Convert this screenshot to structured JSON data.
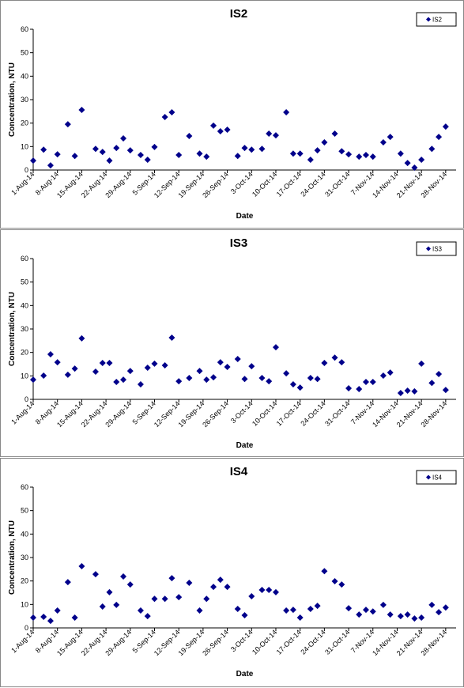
{
  "chart_data": [
    {
      "type": "scatter",
      "title": "IS2",
      "x_label": "Date",
      "y_label": "Concentration, NTU",
      "legend": "upper right",
      "x": [
        "1-Aug-14",
        "4-Aug-14",
        "6-Aug-14",
        "8-Aug-14",
        "11-Aug-14",
        "13-Aug-14",
        "15-Aug-14",
        "19-Aug-14",
        "21-Aug-14",
        "23-Aug-14",
        "25-Aug-14",
        "27-Aug-14",
        "29-Aug-14",
        "1-Sep-14",
        "3-Sep-14",
        "5-Sep-14",
        "8-Sep-14",
        "10-Sep-14",
        "12-Sep-14",
        "15-Sep-14",
        "18-Sep-14",
        "20-Sep-14",
        "22-Sep-14",
        "24-Sep-14",
        "26-Sep-14",
        "29-Sep-14",
        "1-Oct-14",
        "3-Oct-14",
        "6-Oct-14",
        "8-Oct-14",
        "10-Oct-14",
        "13-Oct-14",
        "15-Oct-14",
        "17-Oct-14",
        "20-Oct-14",
        "22-Oct-14",
        "24-Oct-14",
        "27-Oct-14",
        "29-Oct-14",
        "31-Oct-14",
        "3-Nov-14",
        "5-Nov-14",
        "7-Nov-14",
        "10-Nov-14",
        "12-Nov-14",
        "15-Nov-14",
        "17-Nov-14",
        "19-Nov-14",
        "21-Nov-14",
        "24-Nov-14",
        "26-Nov-14",
        "28-Nov-14"
      ],
      "series": [
        {
          "name": "IS2",
          "color": "#00008b",
          "values": [
            4,
            8.7,
            2,
            6.7,
            19.5,
            6,
            25.6,
            9,
            7.7,
            4,
            9.4,
            13.5,
            8.4,
            6.4,
            4.4,
            9.8,
            22.6,
            24.6,
            6.4,
            14.5,
            7,
            5.7,
            18.9,
            16.5,
            17.2,
            6,
            9.4,
            8.7,
            9,
            15.5,
            14.8,
            24.6,
            7,
            7,
            4.4,
            8.4,
            11.8,
            15.5,
            8,
            6.7,
            5.7,
            6.4,
            5.7,
            11.8,
            14.1,
            7,
            3,
            1,
            4.4,
            9,
            14.1,
            18.5
          ]
        }
      ],
      "xlim": [
        "1-Aug-14",
        "1-Dec-14"
      ],
      "xticks": [
        "1-Aug-14",
        "8-Aug-14",
        "15-Aug-14",
        "22-Aug-14",
        "29-Aug-14",
        "5-Sep-14",
        "12-Sep-14",
        "19-Sep-14",
        "26-Sep-14",
        "3-Oct-14",
        "10-Oct-14",
        "17-Oct-14",
        "24-Oct-14",
        "31-Oct-14",
        "7-Nov-14",
        "14-Nov-14",
        "21-Nov-14",
        "28-Nov-14"
      ],
      "ylim": [
        0,
        60
      ],
      "yticks": [
        0,
        10,
        20,
        30,
        40,
        50,
        60
      ]
    },
    {
      "type": "scatter",
      "title": "IS3",
      "x_label": "Date",
      "y_label": "Concentration, NTU",
      "legend": "upper right",
      "x": [
        "1-Aug-14",
        "4-Aug-14",
        "6-Aug-14",
        "8-Aug-14",
        "11-Aug-14",
        "13-Aug-14",
        "15-Aug-14",
        "19-Aug-14",
        "21-Aug-14",
        "23-Aug-14",
        "25-Aug-14",
        "27-Aug-14",
        "29-Aug-14",
        "1-Sep-14",
        "3-Sep-14",
        "5-Sep-14",
        "8-Sep-14",
        "10-Sep-14",
        "12-Sep-14",
        "15-Sep-14",
        "18-Sep-14",
        "20-Sep-14",
        "22-Sep-14",
        "24-Sep-14",
        "26-Sep-14",
        "29-Sep-14",
        "1-Oct-14",
        "3-Oct-14",
        "6-Oct-14",
        "8-Oct-14",
        "10-Oct-14",
        "13-Oct-14",
        "15-Oct-14",
        "17-Oct-14",
        "20-Oct-14",
        "22-Oct-14",
        "24-Oct-14",
        "27-Oct-14",
        "29-Oct-14",
        "31-Oct-14",
        "3-Nov-14",
        "5-Nov-14",
        "7-Nov-14",
        "10-Nov-14",
        "12-Nov-14",
        "15-Nov-14",
        "17-Nov-14",
        "19-Nov-14",
        "21-Nov-14",
        "24-Nov-14",
        "26-Nov-14",
        "28-Nov-14"
      ],
      "series": [
        {
          "name": "IS3",
          "color": "#00008b",
          "values": [
            8.4,
            10.1,
            19.2,
            15.8,
            10.5,
            13.1,
            26,
            11.8,
            15.5,
            15.5,
            7.4,
            8.4,
            12.1,
            6.4,
            13.5,
            15.2,
            14.5,
            26.3,
            7.7,
            9.1,
            12.1,
            8.4,
            9.4,
            15.8,
            13.8,
            17.2,
            8.7,
            14.1,
            9.1,
            7.7,
            22.2,
            11.1,
            6.4,
            5,
            9.1,
            8.7,
            15.5,
            17.8,
            15.8,
            4.7,
            4.4,
            7.4,
            7.4,
            10.1,
            11.4,
            2.7,
            3.7,
            3.4,
            15.2,
            7,
            10.8,
            4
          ]
        }
      ],
      "xlim": [
        "1-Aug-14",
        "1-Dec-14"
      ],
      "xticks": [
        "1-Aug-14",
        "8-Aug-14",
        "15-Aug-14",
        "22-Aug-14",
        "29-Aug-14",
        "5-Sep-14",
        "12-Sep-14",
        "19-Sep-14",
        "26-Sep-14",
        "3-Oct-14",
        "10-Oct-14",
        "17-Oct-14",
        "24-Oct-14",
        "31-Oct-14",
        "7-Nov-14",
        "14-Nov-14",
        "21-Nov-14",
        "28-Nov-14"
      ],
      "ylim": [
        0,
        60
      ],
      "yticks": [
        0,
        10,
        20,
        30,
        40,
        50,
        60
      ]
    },
    {
      "type": "scatter",
      "title": "IS4",
      "x_label": "Date",
      "y_label": "Concentration, NTU",
      "legend": "upper right",
      "x": [
        "1-Aug-14",
        "4-Aug-14",
        "6-Aug-14",
        "8-Aug-14",
        "11-Aug-14",
        "13-Aug-14",
        "15-Aug-14",
        "19-Aug-14",
        "21-Aug-14",
        "23-Aug-14",
        "25-Aug-14",
        "27-Aug-14",
        "29-Aug-14",
        "1-Sep-14",
        "3-Sep-14",
        "5-Sep-14",
        "8-Sep-14",
        "10-Sep-14",
        "12-Sep-14",
        "15-Sep-14",
        "18-Sep-14",
        "20-Sep-14",
        "22-Sep-14",
        "24-Sep-14",
        "26-Sep-14",
        "29-Sep-14",
        "1-Oct-14",
        "3-Oct-14",
        "6-Oct-14",
        "8-Oct-14",
        "10-Oct-14",
        "13-Oct-14",
        "15-Oct-14",
        "17-Oct-14",
        "20-Oct-14",
        "22-Oct-14",
        "24-Oct-14",
        "27-Oct-14",
        "29-Oct-14",
        "31-Oct-14",
        "3-Nov-14",
        "5-Nov-14",
        "7-Nov-14",
        "10-Nov-14",
        "12-Nov-14",
        "15-Nov-14",
        "17-Nov-14",
        "19-Nov-14",
        "21-Nov-14",
        "24-Nov-14",
        "26-Nov-14",
        "28-Nov-14"
      ],
      "series": [
        {
          "name": "IS4",
          "color": "#00008b",
          "values": [
            4.4,
            4.7,
            3,
            7.4,
            19.5,
            4.4,
            26.3,
            22.9,
            9.1,
            15.2,
            9.8,
            21.9,
            18.5,
            7.4,
            5,
            12.4,
            12.4,
            21.2,
            13.1,
            19.2,
            7.4,
            12.4,
            17.5,
            20.5,
            17.5,
            8.1,
            5.4,
            13.5,
            16.2,
            16.2,
            15.2,
            7.4,
            7.7,
            4.4,
            8.1,
            9.4,
            24.2,
            19.9,
            18.5,
            8.4,
            5.7,
            7.7,
            7,
            9.8,
            5.7,
            5,
            5.7,
            4,
            4.4,
            9.8,
            6.7,
            8.7
          ]
        }
      ],
      "xlim": [
        "1-Aug-14",
        "1-Dec-14"
      ],
      "xticks": [
        "1-Aug-14",
        "8-Aug-14",
        "15-Aug-14",
        "22-Aug-14",
        "29-Aug-14",
        "5-Sep-14",
        "12-Sep-14",
        "19-Sep-14",
        "26-Sep-14",
        "3-Oct-14",
        "10-Oct-14",
        "17-Oct-14",
        "24-Oct-14",
        "31-Oct-14",
        "7-Nov-14",
        "14-Nov-14",
        "21-Nov-14",
        "28-Nov-14"
      ],
      "ylim": [
        0,
        60
      ],
      "yticks": [
        0,
        10,
        20,
        30,
        40,
        50,
        60
      ]
    }
  ]
}
